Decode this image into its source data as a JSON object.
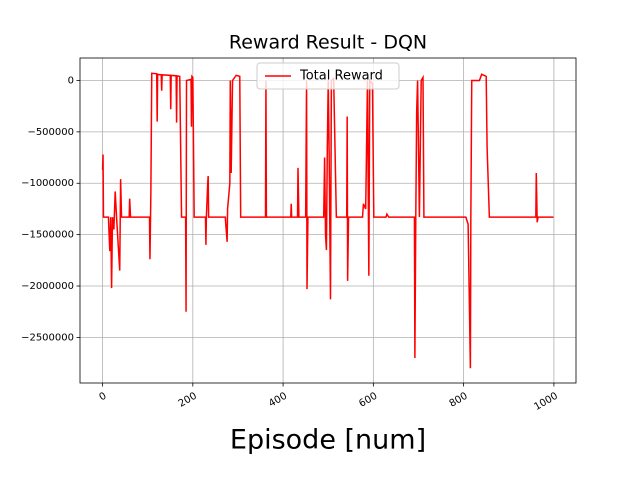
{
  "chart_data": {
    "type": "line",
    "title": "Reward Result - DQN",
    "x_label": "Episode [num]",
    "x": [
      0,
      1,
      2,
      13,
      16,
      18,
      20,
      22,
      25,
      28,
      31,
      38,
      40,
      42,
      59,
      60,
      62,
      104,
      105,
      107,
      109,
      120,
      121,
      122,
      130,
      131,
      132,
      150,
      151,
      152,
      163,
      164,
      165,
      171,
      175,
      184,
      185,
      186,
      196,
      197,
      198,
      200,
      203,
      228,
      229,
      230,
      233,
      234,
      235,
      272,
      273,
      276,
      277,
      282,
      283,
      285,
      288,
      296,
      304,
      306,
      361,
      362,
      363,
      417,
      418,
      419,
      432,
      433,
      435,
      450,
      452,
      453,
      455,
      490,
      492,
      494,
      496,
      498,
      500,
      502,
      505,
      507,
      512,
      518,
      541,
      542,
      543,
      545,
      576,
      578,
      583,
      587,
      590,
      592,
      598,
      601,
      628,
      630,
      634,
      691,
      692,
      694,
      696,
      698,
      700,
      702,
      706,
      710,
      712,
      805,
      810,
      815,
      816,
      818,
      835,
      840,
      850,
      852,
      857,
      960,
      961,
      963,
      965,
      999
    ],
    "series": [
      {
        "name": "Total Reward",
        "color": "#ff0000",
        "values": [
          -870000,
          -720000,
          -1330000,
          -1330000,
          -1660000,
          -1330000,
          -2020000,
          -1330000,
          -1450000,
          -1080000,
          -1330000,
          -1850000,
          -960000,
          -1330000,
          -1330000,
          -1150000,
          -1330000,
          -1330000,
          -1740000,
          -1100000,
          70000,
          65000,
          -400000,
          60000,
          55000,
          -100000,
          55000,
          50000,
          -280000,
          50000,
          45000,
          -410000,
          45000,
          40000,
          -1330000,
          -1330000,
          -2250000,
          0,
          10000,
          -450000,
          40000,
          30000,
          -1330000,
          -1330000,
          -1600000,
          -1330000,
          -1000000,
          -930000,
          -1330000,
          -1330000,
          -1400000,
          -1570000,
          -1250000,
          -1000000,
          0,
          -900000,
          0,
          50000,
          40000,
          -1330000,
          -1330000,
          0,
          -1330000,
          -1330000,
          -1200000,
          -1330000,
          -1330000,
          -850000,
          -1330000,
          -1330000,
          0,
          -2030000,
          -1330000,
          -1330000,
          -750000,
          -1500000,
          -1650000,
          -650000,
          0,
          -700000,
          -2130000,
          0,
          20000,
          -1330000,
          -1330000,
          -350000,
          -1950000,
          -1330000,
          -1330000,
          -1200000,
          -1250000,
          0,
          -1900000,
          0,
          -30000,
          -1330000,
          -1330000,
          -1300000,
          -1330000,
          -1330000,
          -2700000,
          -1330000,
          -300000,
          0,
          -650000,
          -1330000,
          0,
          30000,
          -1330000,
          -1330000,
          -1400000,
          -2800000,
          -1330000,
          0,
          0,
          60000,
          40000,
          -650000,
          -1330000,
          -1330000,
          -900000,
          -1380000,
          -1330000,
          -1330000
        ]
      }
    ],
    "xlim": [
      -50,
      1049
    ],
    "ylim": [
      -2943750,
      218750
    ],
    "xticks": [
      0,
      200,
      400,
      600,
      800,
      1000
    ],
    "yticks": [
      0,
      {
        "value": -500000,
        "label": "−500000"
      },
      {
        "value": -1000000,
        "label": "−1000000"
      },
      {
        "value": -1500000,
        "label": "−1500000"
      },
      {
        "value": -2000000,
        "label": "−2000000"
      },
      {
        "value": -2500000,
        "label": "−2500000"
      }
    ],
    "grid": true,
    "legend_position": "upper center"
  }
}
